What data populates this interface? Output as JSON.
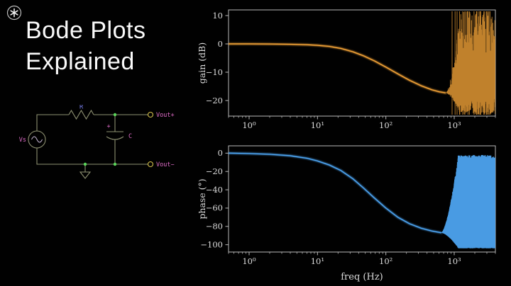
{
  "branding": {
    "logo_icon": "asterisk"
  },
  "title": {
    "line1": "Bode Plots",
    "line2": "Explained"
  },
  "circuit": {
    "labels": {
      "source": "Vs",
      "resistor": "R",
      "capacitor": "C",
      "cap_polarity": "+",
      "out_plus": "Vout+",
      "out_minus": "Vout−"
    },
    "colors": {
      "wire": "#8f9272",
      "node": "#5bd65b",
      "terminal": "#d4c04c",
      "pink": "#e06cc8",
      "blue": "#7d84f5",
      "sine": "#c9b9d8"
    }
  },
  "chart_data": [
    {
      "id": "gain",
      "type": "line",
      "title": "",
      "ylabel": "gain (dB)",
      "xlabel": "",
      "x_scale": "log",
      "xlim": [
        0.5,
        4000
      ],
      "ylim": [
        -25.5,
        12
      ],
      "xticks": [
        1,
        10,
        100,
        1000
      ],
      "xtick_labels": [
        "10⁰",
        "10¹",
        "10²",
        "10³"
      ],
      "yticks": [
        10,
        0,
        -10,
        -20
      ],
      "grid": false,
      "legend": "none",
      "line_color": "#f0a137",
      "points": {
        "x": [
          0.5,
          1,
          2,
          4,
          7,
          10,
          15,
          22,
          33,
          47,
          68,
          100,
          150,
          220,
          330,
          470,
          600,
          750
        ],
        "y": [
          0,
          0,
          -0.05,
          -0.15,
          -0.3,
          -0.5,
          -0.9,
          -1.6,
          -2.8,
          -4.2,
          -6.0,
          -8.2,
          -10.6,
          -12.8,
          -14.8,
          -16.2,
          -16.9,
          -17.3
        ]
      },
      "noise": {
        "start": 750,
        "full": 1200,
        "y_min": -25,
        "y_max": 11.5,
        "solid": false
      }
    },
    {
      "id": "phase",
      "type": "line",
      "title": "",
      "ylabel": "phase (°)",
      "xlabel": "freq (Hz)",
      "x_scale": "log",
      "xlim": [
        0.5,
        4000
      ],
      "ylim": [
        -108,
        8
      ],
      "xticks": [
        1,
        10,
        100,
        1000
      ],
      "xtick_labels": [
        "10⁰",
        "10¹",
        "10²",
        "10³"
      ],
      "yticks": [
        0,
        -20,
        -40,
        -60,
        -80,
        -100
      ],
      "grid": false,
      "legend": "none",
      "line_color": "#4da3ef",
      "points": {
        "x": [
          0.5,
          1,
          2,
          4,
          7,
          10,
          15,
          22,
          33,
          47,
          68,
          100,
          150,
          220,
          330,
          470,
          650
        ],
        "y": [
          0,
          -0.4,
          -1.2,
          -2.8,
          -5.5,
          -8.5,
          -13,
          -19,
          -28,
          -38,
          -49,
          -60,
          -70,
          -77,
          -82,
          -85,
          -87
        ]
      },
      "noise": {
        "start": 650,
        "full": 1150,
        "y_min": -104,
        "y_max": -2,
        "solid": true
      }
    }
  ]
}
